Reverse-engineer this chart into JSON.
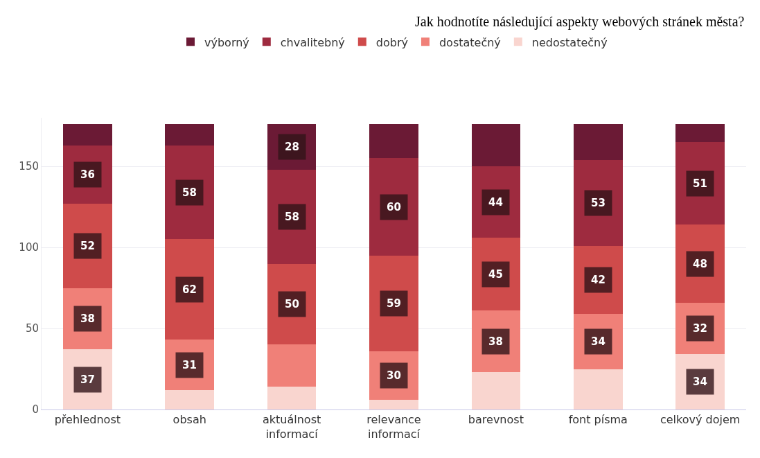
{
  "chart_data": {
    "type": "bar",
    "title": "Jak hodnotíte následující aspekty webových stránek města?",
    "categories": [
      "přehlednost",
      "obsah",
      "aktuálnost informací",
      "relevance informací",
      "barevnost",
      "font písma",
      "celkový dojem"
    ],
    "stacked": true,
    "ylim": [
      0,
      180
    ],
    "yticks": [
      0,
      50,
      100,
      150
    ],
    "grid": "y",
    "legend": "top",
    "series": [
      {
        "name": "nedostatečný",
        "color": "#f9d5cf",
        "values": [
          37,
          12,
          14,
          6,
          23,
          25,
          34
        ],
        "value_labels": [
          "37",
          null,
          null,
          null,
          null,
          null,
          "34"
        ]
      },
      {
        "name": "dostatečný",
        "color": "#f08078",
        "values": [
          38,
          31,
          26,
          30,
          38,
          34,
          32
        ],
        "value_labels": [
          "38",
          "31",
          null,
          "30",
          "38",
          "34",
          "32"
        ]
      },
      {
        "name": "dobrý",
        "color": "#cf4b4b",
        "values": [
          52,
          62,
          50,
          59,
          45,
          42,
          48
        ],
        "value_labels": [
          "52",
          "62",
          "50",
          "59",
          "45",
          "42",
          "48"
        ]
      },
      {
        "name": "chvalitebný",
        "color": "#9e2b3f",
        "values": [
          36,
          58,
          58,
          60,
          44,
          53,
          51
        ],
        "value_labels": [
          "36",
          "58",
          "58",
          "60",
          "44",
          "53",
          "51"
        ]
      },
      {
        "name": "výborný",
        "color": "#6b1a35",
        "values": [
          13,
          13,
          28,
          21,
          26,
          22,
          11
        ],
        "value_labels": [
          null,
          null,
          "28",
          null,
          null,
          null,
          null
        ]
      }
    ]
  }
}
